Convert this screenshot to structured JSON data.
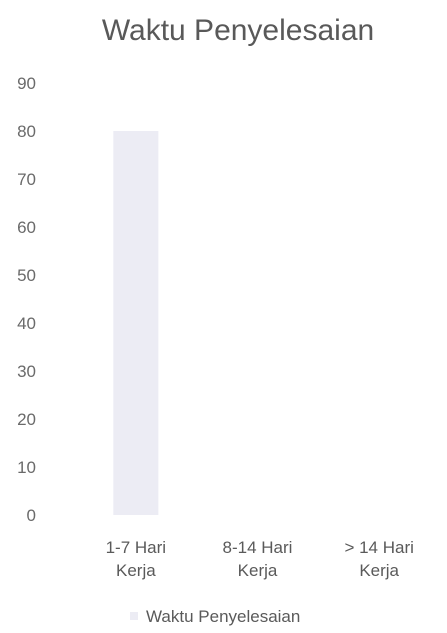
{
  "chart_data": {
    "type": "bar",
    "title": "Waktu Penyelesaian",
    "categories": [
      [
        "1-7 Hari",
        "Kerja"
      ],
      [
        "8-14 Hari",
        "Kerja"
      ],
      [
        "> 14 Hari",
        "Kerja"
      ]
    ],
    "series": [
      {
        "name": "Waktu Penyelesaian",
        "values": [
          80,
          0,
          0
        ],
        "color": "#ececf4"
      }
    ],
    "yticks": [
      0,
      10,
      20,
      30,
      40,
      50,
      60,
      70,
      80,
      90
    ],
    "ylim": [
      0,
      90
    ],
    "grid": false,
    "legend_position": "bottom"
  }
}
